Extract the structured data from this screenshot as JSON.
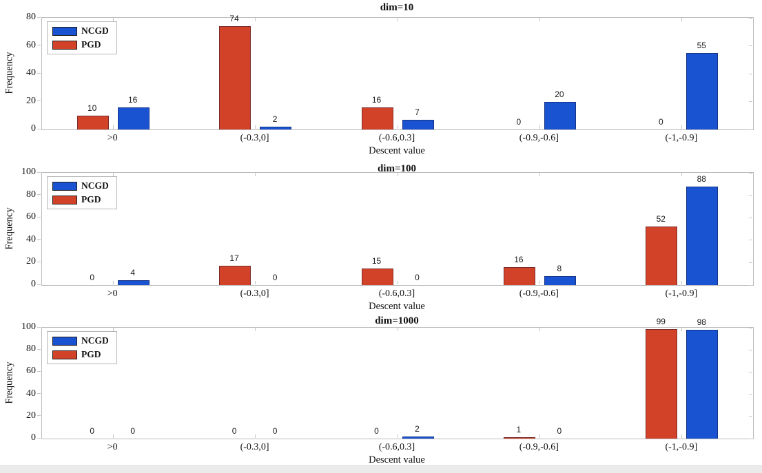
{
  "figure": {
    "xlabel": "Descent value",
    "ylabel": "Frequency",
    "bottom_strip_color": "#eaeaea",
    "legend": [
      {
        "label": "NCGD",
        "color": "#1a53d2"
      },
      {
        "label": "PGD",
        "color": "#d24229"
      }
    ]
  },
  "chart_data": [
    {
      "type": "bar",
      "title": "dim=10",
      "xlabel": "Descent value",
      "ylabel": "Frequency",
      "categories": [
        ">0",
        "(-0.3,0]",
        "(-0.6,0.3]",
        "(-0.9,-0.6]",
        "(-1,-0.9]"
      ],
      "series": [
        {
          "name": "PGD",
          "color": "#d24229",
          "values": [
            10,
            74,
            16,
            0,
            0
          ]
        },
        {
          "name": "NCGD",
          "color": "#1a53d2",
          "values": [
            16,
            2,
            7,
            20,
            55
          ]
        }
      ],
      "legend_entries": [
        "NCGD",
        "PGD"
      ],
      "legend_position": "top-left",
      "grid": false,
      "ylim": [
        0,
        80
      ],
      "yticks": [
        0,
        20,
        40,
        60,
        80
      ]
    },
    {
      "type": "bar",
      "title": "dim=100",
      "xlabel": "Descent value",
      "ylabel": "Frequency",
      "categories": [
        ">0",
        "(-0.3,0]",
        "(-0.6,0.3]",
        "(-0.9,-0.6]",
        "(-1,-0.9]"
      ],
      "series": [
        {
          "name": "PGD",
          "color": "#d24229",
          "values": [
            0,
            17,
            15,
            16,
            52
          ]
        },
        {
          "name": "NCGD",
          "color": "#1a53d2",
          "values": [
            4,
            0,
            0,
            8,
            88
          ]
        }
      ],
      "legend_entries": [
        "NCGD",
        "PGD"
      ],
      "legend_position": "top-left",
      "grid": false,
      "ylim": [
        0,
        100
      ],
      "yticks": [
        0,
        20,
        40,
        60,
        80,
        100
      ]
    },
    {
      "type": "bar",
      "title": "dim=1000",
      "xlabel": "Descent value",
      "ylabel": "Frequency",
      "categories": [
        ">0",
        "(-0.3,0]",
        "(-0.6,0.3]",
        "(-0.9,-0.6]",
        "(-1,-0.9]"
      ],
      "series": [
        {
          "name": "PGD",
          "color": "#d24229",
          "values": [
            0,
            0,
            0,
            1,
            99
          ]
        },
        {
          "name": "NCGD",
          "color": "#1a53d2",
          "values": [
            0,
            0,
            2,
            0,
            98
          ]
        }
      ],
      "legend_entries": [
        "NCGD",
        "PGD"
      ],
      "legend_position": "top-left",
      "grid": false,
      "ylim": [
        0,
        100
      ],
      "yticks": [
        0,
        20,
        40,
        60,
        80,
        100
      ]
    }
  ]
}
